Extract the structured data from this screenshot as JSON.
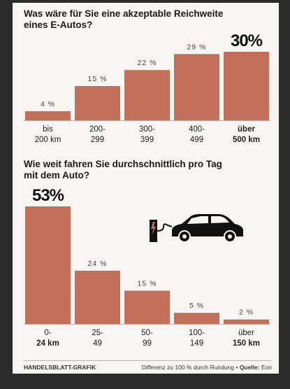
{
  "accent_color": "#c2705a",
  "chart_data": [
    {
      "type": "bar",
      "title_lines": [
        "Was wäre für Sie eine akzeptable Reichweite",
        "eines E-Autos?"
      ],
      "categories": [
        [
          "bis",
          "200 km"
        ],
        [
          "200-",
          "299"
        ],
        [
          "300-",
          "399"
        ],
        [
          "400-",
          "499"
        ],
        [
          "über",
          "500 km"
        ]
      ],
      "values": [
        4,
        15,
        22,
        29,
        30
      ],
      "value_labels": [
        "4 %",
        "15 %",
        "22 %",
        "29 %",
        "30%"
      ],
      "highlight_index": 4,
      "ylim": [
        0,
        30
      ]
    },
    {
      "type": "bar",
      "title_lines": [
        "Wie weit fahren Sie durchschnittlich pro Tag",
        "mit dem Auto?"
      ],
      "categories": [
        [
          "0-",
          "24 km"
        ],
        [
          "25-",
          "49"
        ],
        [
          "50-",
          "99"
        ],
        [
          "100-",
          "149"
        ],
        [
          "über",
          "150 km"
        ]
      ],
      "values": [
        53,
        24,
        15,
        5,
        2
      ],
      "value_labels": [
        "53%",
        "24 %",
        "15 %",
        "5 %",
        "2 %"
      ],
      "highlight_index": 0,
      "ylim": [
        0,
        53
      ]
    }
  ],
  "illustration": {
    "icon": "ev-charging-car-icon"
  },
  "footer": {
    "brand": "HANDELSBLATT-GRAFIK",
    "note": "Differenz zu 100 % durch Rundung • ",
    "source_label": "Quelle:",
    "source_value": " Eon"
  }
}
